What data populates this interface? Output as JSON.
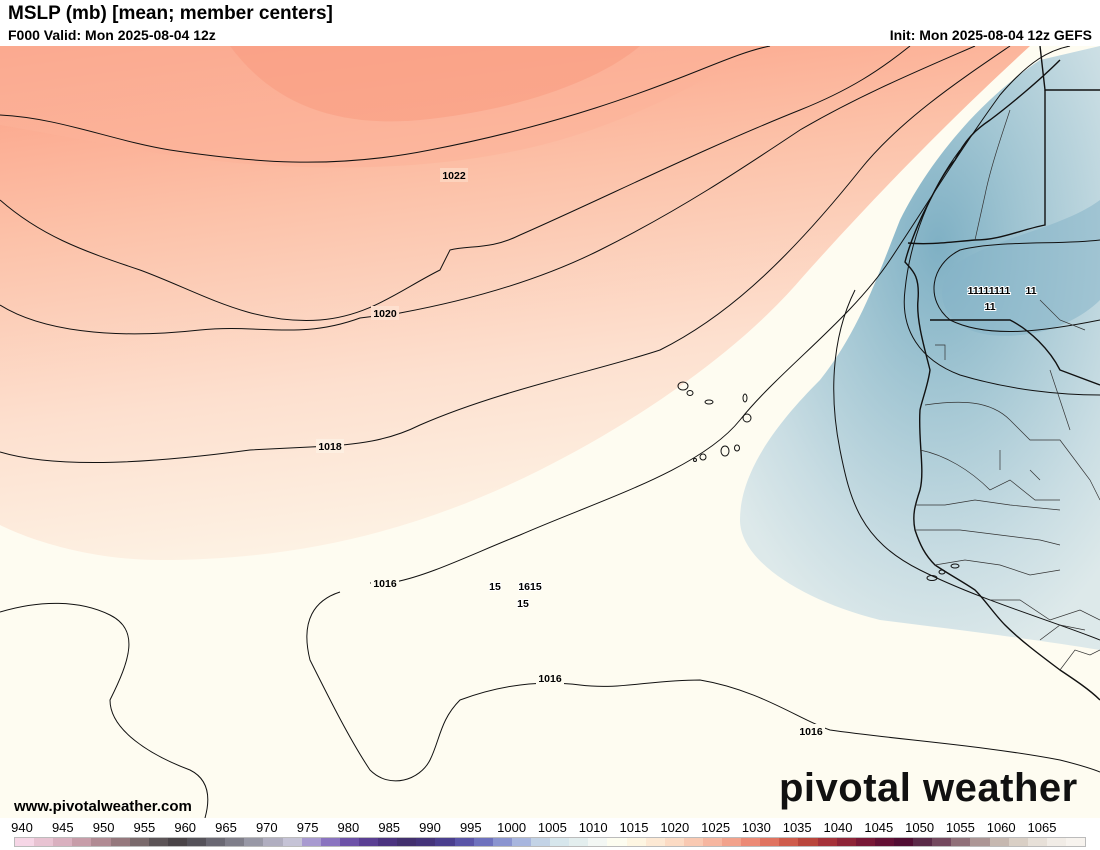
{
  "header": {
    "title": "MSLP (mb) [mean; member centers]",
    "valid": "F000 Valid: Mon 2025-08-04 12z",
    "init": "Init: Mon 2025-08-04 12z GEFS"
  },
  "map": {
    "isobar_labels": [
      "1022",
      "1020",
      "1018",
      "1016",
      "1016",
      "1016"
    ],
    "low_centers": [
      "11111111",
      "11",
      "11"
    ],
    "high_centers": [
      "15",
      "1615",
      "15"
    ]
  },
  "footer": {
    "website": "www.pivotalweather.com",
    "brand": "pivotal weather"
  },
  "legend": {
    "ticks": [
      "940",
      "945",
      "950",
      "955",
      "960",
      "965",
      "970",
      "975",
      "980",
      "985",
      "990",
      "995",
      "1000",
      "1005",
      "1010",
      "1015",
      "1020",
      "1025",
      "1030",
      "1035",
      "1040",
      "1045",
      "1050",
      "1055",
      "1060",
      "1065"
    ],
    "colors": [
      "#f6d6e6",
      "#e8c3d2",
      "#d9b0bf",
      "#c79da9",
      "#b08a93",
      "#95787d",
      "#7a6a6c",
      "#5c5457",
      "#4a4448",
      "#55525a",
      "#6a6873",
      "#7f7e8a",
      "#9898a6",
      "#b0aec0",
      "#c5c3d6",
      "#a89ad0",
      "#8a74c0",
      "#6d52a8",
      "#5a3f93",
      "#4b3380",
      "#42306e",
      "#44347a",
      "#4a3f8e",
      "#5a55a8",
      "#6e72be",
      "#8a94d0",
      "#a8b6de",
      "#c3d3e6",
      "#d6e6ec",
      "#e3eeee",
      "#f3f7f4",
      "#fdfdf0",
      "#fef6e2",
      "#fde9d4",
      "#fcdbc4",
      "#f9c9b2",
      "#f6b6a0",
      "#f2a28c",
      "#ec8a76",
      "#e07360",
      "#cf5c4c",
      "#b9463c",
      "#a5323a",
      "#8e2438",
      "#781837",
      "#631035",
      "#510d33",
      "#5a2a48",
      "#74495f",
      "#907079",
      "#ac9695",
      "#c6b8b0",
      "#d9cfc5",
      "#e7e0d8",
      "#f1ece6",
      "#f7f3ee"
    ]
  }
}
